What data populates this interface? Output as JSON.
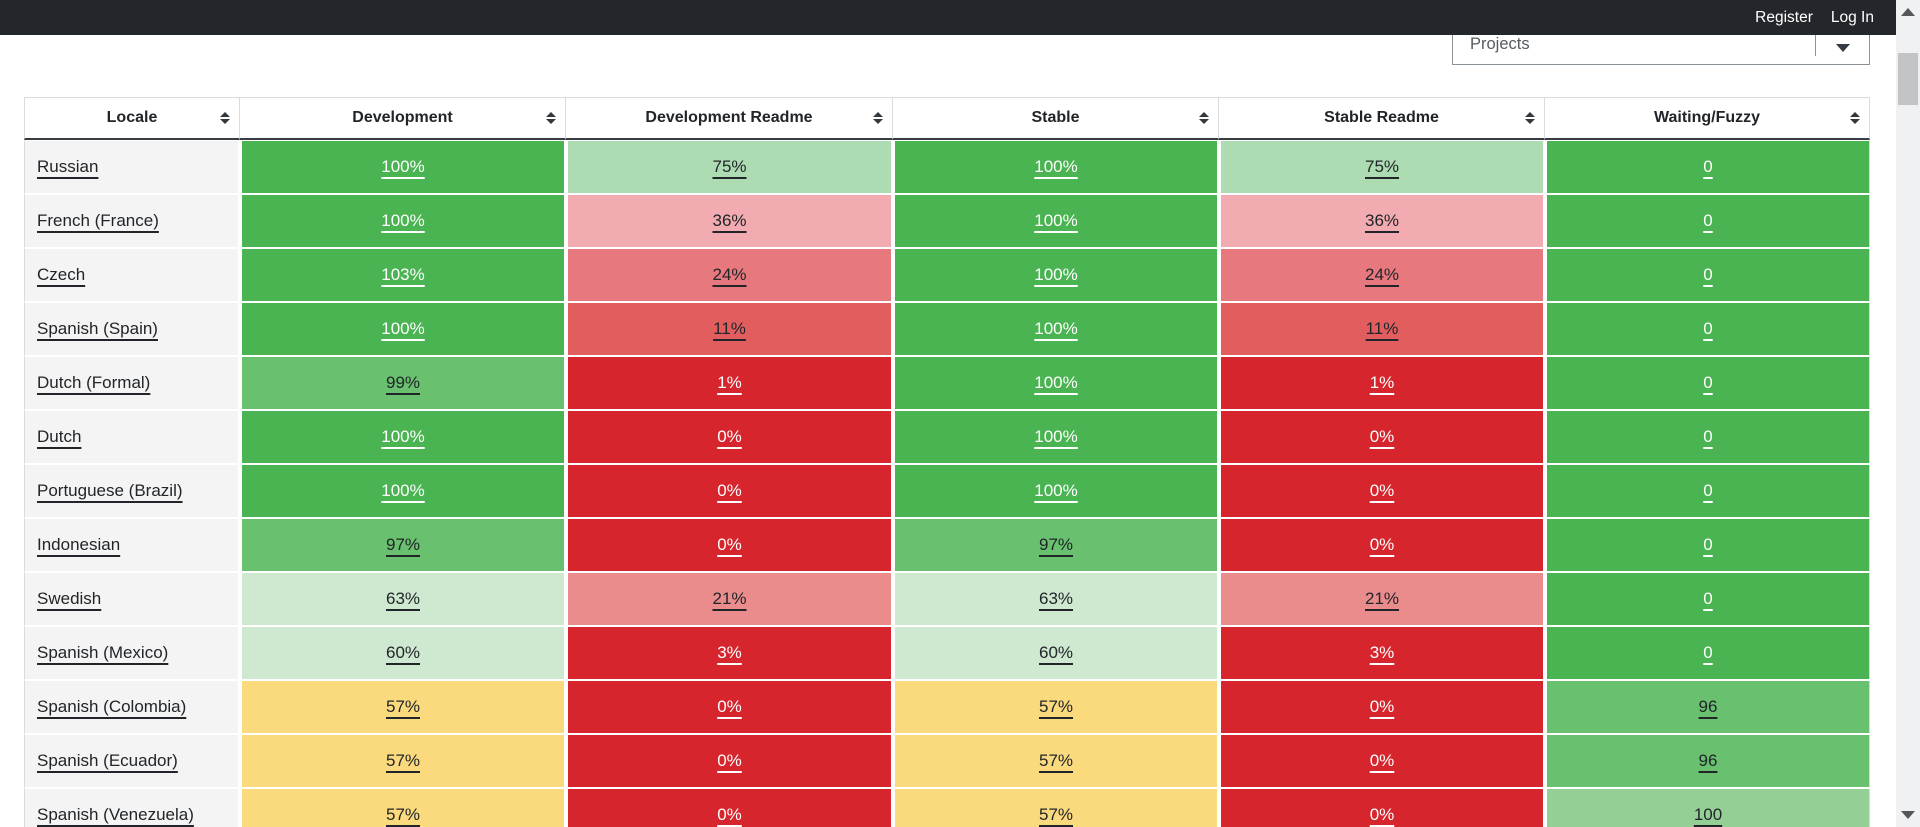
{
  "navbar": {
    "register_label": "Register",
    "login_label": "Log In",
    "background_color": "#23272b"
  },
  "filter": {
    "selected_value": "Projects"
  },
  "table": {
    "columns": [
      {
        "label": "Locale"
      },
      {
        "label": "Development"
      },
      {
        "label": "Development Readme"
      },
      {
        "label": "Stable"
      },
      {
        "label": "Stable Readme"
      },
      {
        "label": "Waiting/Fuzzy"
      }
    ],
    "rows": [
      {
        "locale": "Russian",
        "cells": [
          {
            "text": "100%",
            "tone": "g1"
          },
          {
            "text": "75%",
            "tone": "g4"
          },
          {
            "text": "100%",
            "tone": "g1"
          },
          {
            "text": "75%",
            "tone": "g4"
          },
          {
            "text": "0",
            "tone": "g1"
          }
        ]
      },
      {
        "locale": "French (France)",
        "cells": [
          {
            "text": "100%",
            "tone": "g1"
          },
          {
            "text": "36%",
            "tone": "r4"
          },
          {
            "text": "100%",
            "tone": "g1"
          },
          {
            "text": "36%",
            "tone": "r4"
          },
          {
            "text": "0",
            "tone": "g1"
          }
        ]
      },
      {
        "locale": "Czech",
        "cells": [
          {
            "text": "103%",
            "tone": "g1"
          },
          {
            "text": "24%",
            "tone": "r3"
          },
          {
            "text": "100%",
            "tone": "g1"
          },
          {
            "text": "24%",
            "tone": "r3"
          },
          {
            "text": "0",
            "tone": "g1"
          }
        ]
      },
      {
        "locale": "Spanish (Spain)",
        "cells": [
          {
            "text": "100%",
            "tone": "g1"
          },
          {
            "text": "11%",
            "tone": "r2"
          },
          {
            "text": "100%",
            "tone": "g1"
          },
          {
            "text": "11%",
            "tone": "r2"
          },
          {
            "text": "0",
            "tone": "g1"
          }
        ]
      },
      {
        "locale": "Dutch (Formal)",
        "cells": [
          {
            "text": "99%",
            "tone": "g2"
          },
          {
            "text": "1%",
            "tone": "r1"
          },
          {
            "text": "100%",
            "tone": "g1"
          },
          {
            "text": "1%",
            "tone": "r1"
          },
          {
            "text": "0",
            "tone": "g1"
          }
        ]
      },
      {
        "locale": "Dutch",
        "cells": [
          {
            "text": "100%",
            "tone": "g1"
          },
          {
            "text": "0%",
            "tone": "r1"
          },
          {
            "text": "100%",
            "tone": "g1"
          },
          {
            "text": "0%",
            "tone": "r1"
          },
          {
            "text": "0",
            "tone": "g1"
          }
        ]
      },
      {
        "locale": "Portuguese (Brazil)",
        "cells": [
          {
            "text": "100%",
            "tone": "g1"
          },
          {
            "text": "0%",
            "tone": "r1"
          },
          {
            "text": "100%",
            "tone": "g1"
          },
          {
            "text": "0%",
            "tone": "r1"
          },
          {
            "text": "0",
            "tone": "g1"
          }
        ]
      },
      {
        "locale": "Indonesian",
        "cells": [
          {
            "text": "97%",
            "tone": "g2"
          },
          {
            "text": "0%",
            "tone": "r1"
          },
          {
            "text": "97%",
            "tone": "g2"
          },
          {
            "text": "0%",
            "tone": "r1"
          },
          {
            "text": "0",
            "tone": "g1"
          }
        ]
      },
      {
        "locale": "Swedish",
        "cells": [
          {
            "text": "63%",
            "tone": "g5"
          },
          {
            "text": "21%",
            "tone": "r3b"
          },
          {
            "text": "63%",
            "tone": "g5"
          },
          {
            "text": "21%",
            "tone": "r3b"
          },
          {
            "text": "0",
            "tone": "g1"
          }
        ]
      },
      {
        "locale": "Spanish (Mexico)",
        "cells": [
          {
            "text": "60%",
            "tone": "g5"
          },
          {
            "text": "3%",
            "tone": "r1"
          },
          {
            "text": "60%",
            "tone": "g5"
          },
          {
            "text": "3%",
            "tone": "r1"
          },
          {
            "text": "0",
            "tone": "g1"
          }
        ]
      },
      {
        "locale": "Spanish (Colombia)",
        "cells": [
          {
            "text": "57%",
            "tone": "y"
          },
          {
            "text": "0%",
            "tone": "r1"
          },
          {
            "text": "57%",
            "tone": "y"
          },
          {
            "text": "0%",
            "tone": "r1"
          },
          {
            "text": "96",
            "tone": "g2"
          }
        ]
      },
      {
        "locale": "Spanish (Ecuador)",
        "cells": [
          {
            "text": "57%",
            "tone": "y"
          },
          {
            "text": "0%",
            "tone": "r1"
          },
          {
            "text": "57%",
            "tone": "y"
          },
          {
            "text": "0%",
            "tone": "r1"
          },
          {
            "text": "96",
            "tone": "g2"
          }
        ]
      },
      {
        "locale": "Spanish (Venezuela)",
        "cells": [
          {
            "text": "57%",
            "tone": "y"
          },
          {
            "text": "0%",
            "tone": "r1"
          },
          {
            "text": "57%",
            "tone": "y"
          },
          {
            "text": "0%",
            "tone": "r1"
          },
          {
            "text": "100",
            "tone": "g3"
          }
        ]
      }
    ]
  },
  "palette": {
    "g1": {
      "bg": "#49b451",
      "text": "#ffffff"
    },
    "g2": {
      "bg": "#69c16f",
      "text": "#212529"
    },
    "g3": {
      "bg": "#94d096",
      "text": "#212529"
    },
    "g4": {
      "bg": "#aedcb2",
      "text": "#212529"
    },
    "g5": {
      "bg": "#cfe9d0",
      "text": "#212529"
    },
    "y": {
      "bg": "#fbd97d",
      "text": "#212529"
    },
    "r4": {
      "bg": "#f2abb0",
      "text": "#212529"
    },
    "r3": {
      "bg": "#e7797e",
      "text": "#212529"
    },
    "r3b": {
      "bg": "#ea8c8c",
      "text": "#212529"
    },
    "r2": {
      "bg": "#e25e5e",
      "text": "#212529"
    },
    "r1": {
      "bg": "#d6252d",
      "text": "#ffffff"
    }
  }
}
